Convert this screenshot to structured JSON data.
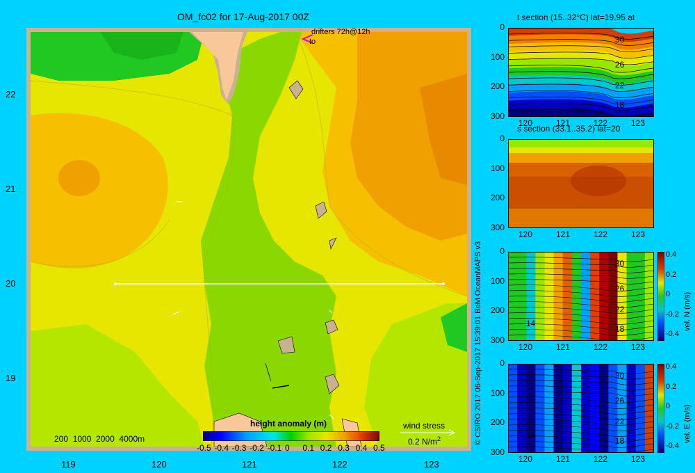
{
  "title": "OM_fc02 for 17-Aug-2017 00Z",
  "map": {
    "lat_ticks": [
      "22",
      "21",
      "20",
      "19"
    ],
    "lon_ticks": [
      "119",
      "120",
      "121",
      "122",
      "123"
    ],
    "drifters_label": "drifters 72h@12h",
    "drifters_to": "to",
    "depth_legend": "200  1000  2000  4000m",
    "colorbar_title": "height anomaly (m)",
    "colorbar_ticks": [
      "-0.5",
      "-0.4",
      "-0.3",
      "-0.2",
      "-0.1",
      "0",
      "0.1",
      "0.2",
      "0.3",
      "0.4",
      "0.5"
    ],
    "wind_label": "wind stress",
    "wind_scale": "0.2 N/m",
    "wind_scale_sup": "2",
    "colors": {
      "sea": "#00d2ff",
      "land": "#f8c898",
      "coast": "#c8b290",
      "magenta": "#e000e0"
    }
  },
  "credit": "© CSIRO 2017   06-Sep-2017 15:39:01 BoM OceanMAPS v3",
  "panels": [
    {
      "title": "t section (15..32°C) lat=19.95 at",
      "y_ticks": [
        "0",
        "100",
        "200",
        "300"
      ],
      "x_ticks": [
        "120",
        "121",
        "122",
        "123"
      ],
      "contour_labels": [
        "30",
        "26",
        "22",
        "18"
      ]
    },
    {
      "title": "s section (33.1..35.2) lat=20",
      "y_ticks": [
        "0",
        "100",
        "200",
        "300"
      ],
      "x_ticks": [
        "120",
        "121",
        "122",
        "123"
      ]
    },
    {
      "title": "",
      "y_ticks": [
        "0",
        "100",
        "200",
        "300"
      ],
      "x_ticks": [
        "120",
        "121",
        "122",
        "123"
      ],
      "contour_labels": [
        "30",
        "26",
        "22",
        "18",
        "14"
      ],
      "cbar_ticks": [
        "0.4",
        "0.2",
        "0",
        "-0.2",
        "-0.4"
      ],
      "cbar_label": "vel. N (m/s)"
    },
    {
      "title": "",
      "y_ticks": [
        "0",
        "100",
        "200",
        "300"
      ],
      "x_ticks": [
        "120",
        "121",
        "122",
        "123"
      ],
      "contour_labels": [
        "30",
        "26",
        "22",
        "18",
        "14"
      ],
      "cbar_ticks": [
        "0.4",
        "0.2",
        "0",
        "-0.2",
        "-0.4"
      ],
      "cbar_label": "vel. E (m/s)"
    }
  ]
}
